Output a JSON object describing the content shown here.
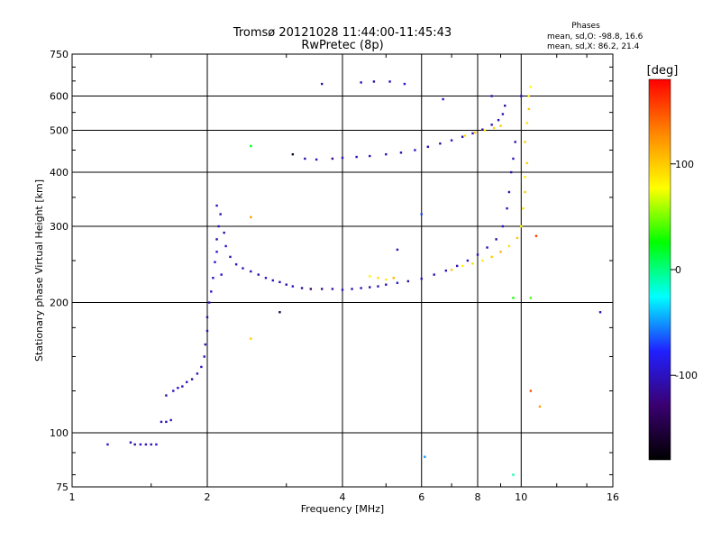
{
  "header": {
    "title": "Tromsø 20121028 11:44:00-11:45:43",
    "subtitle": "RwPretec (8p)",
    "phases_title": "Phases",
    "phases_o": "mean, sd,O: -98.8, 16.6",
    "phases_x": "mean, sd,X:  86.2, 21.4"
  },
  "colorbar": {
    "unit_label": "[deg]",
    "range": [
      -180,
      180
    ],
    "ticks": [
      {
        "value": 100,
        "label": "100"
      },
      {
        "value": 0,
        "label": "0"
      },
      {
        "value": -100,
        "label": "-100"
      }
    ],
    "colors": [
      "#000000",
      "#3a0070",
      "#2020ff",
      "#00ffff",
      "#00ff00",
      "#ffff00",
      "#ff8800",
      "#ff0000"
    ]
  },
  "chart_data": {
    "type": "scatter",
    "xlabel": "Frequency [MHz]",
    "ylabel": "Stationary phase Virtual Height [km]",
    "x_scale": "log",
    "y_scale": "log",
    "xlim": [
      1,
      16
    ],
    "ylim": [
      75,
      750
    ],
    "xticks": [
      {
        "value": 1,
        "label": "1"
      },
      {
        "value": 2,
        "label": "2"
      },
      {
        "value": 4,
        "label": "4"
      },
      {
        "value": 6,
        "label": "6"
      },
      {
        "value": 8,
        "label": "8"
      },
      {
        "value": 10,
        "label": "10"
      },
      {
        "value": 16,
        "label": "16"
      }
    ],
    "yticks": [
      {
        "value": 75,
        "label": "75"
      },
      {
        "value": 100,
        "label": "100"
      },
      {
        "value": 200,
        "label": "200"
      },
      {
        "value": 300,
        "label": "300"
      },
      {
        "value": 400,
        "label": "400"
      },
      {
        "value": 500,
        "label": "500"
      },
      {
        "value": 600,
        "label": "600"
      },
      {
        "value": 750,
        "label": "750"
      }
    ],
    "grid": true,
    "series": [
      {
        "points": [
          [
            1.2,
            94,
            -100
          ],
          [
            1.35,
            95,
            -105
          ],
          [
            1.38,
            94,
            -110
          ],
          [
            1.42,
            94,
            -100
          ],
          [
            1.46,
            94,
            -100
          ],
          [
            1.5,
            94,
            -105
          ],
          [
            1.54,
            94,
            -95
          ],
          [
            1.58,
            106,
            -100
          ],
          [
            1.62,
            106,
            -110
          ],
          [
            1.66,
            107,
            -100
          ],
          [
            1.62,
            122,
            -110
          ],
          [
            1.68,
            125,
            -100
          ],
          [
            1.72,
            127,
            -95
          ],
          [
            1.76,
            128,
            -105
          ],
          [
            1.8,
            131,
            -100
          ],
          [
            1.85,
            133,
            -110
          ],
          [
            1.9,
            137,
            -100
          ],
          [
            1.94,
            142,
            -100
          ],
          [
            1.97,
            150,
            -110
          ],
          [
            1.98,
            160,
            -100
          ],
          [
            2.0,
            172,
            -105
          ],
          [
            2.0,
            185,
            -110
          ],
          [
            2.02,
            200,
            -100
          ],
          [
            2.04,
            212,
            -100
          ],
          [
            2.06,
            228,
            -105
          ],
          [
            2.08,
            248,
            -100
          ],
          [
            2.1,
            262,
            -95
          ],
          [
            2.1,
            280,
            -110
          ],
          [
            2.12,
            300,
            -100
          ],
          [
            2.14,
            320,
            -105
          ],
          [
            2.1,
            335,
            -100
          ],
          [
            2.15,
            232,
            -100
          ],
          [
            2.18,
            290,
            -110
          ],
          [
            2.2,
            270,
            -100
          ],
          [
            2.25,
            255,
            -105
          ],
          [
            2.32,
            245,
            -100
          ],
          [
            2.4,
            240,
            -100
          ],
          [
            2.5,
            236,
            -105
          ],
          [
            2.6,
            232,
            -110
          ],
          [
            2.7,
            228,
            -100
          ],
          [
            2.8,
            225,
            -100
          ],
          [
            2.9,
            223,
            -105
          ],
          [
            3.0,
            220,
            -110
          ],
          [
            3.1,
            218,
            -100
          ],
          [
            3.25,
            216,
            -120
          ],
          [
            3.4,
            215,
            -130
          ],
          [
            3.6,
            215,
            -120
          ],
          [
            3.8,
            215,
            -110
          ],
          [
            4.0,
            214,
            -100
          ],
          [
            4.2,
            215,
            -105
          ],
          [
            4.4,
            216,
            -100
          ],
          [
            4.6,
            217,
            -110
          ],
          [
            4.8,
            218,
            -100
          ],
          [
            5.0,
            220,
            -105
          ],
          [
            5.3,
            222,
            -100
          ],
          [
            5.6,
            224,
            -110
          ],
          [
            6.0,
            227,
            -100
          ],
          [
            6.4,
            232,
            -105
          ],
          [
            6.8,
            237,
            -100
          ],
          [
            7.2,
            243,
            -110
          ],
          [
            7.6,
            250,
            -100
          ],
          [
            8.0,
            258,
            -105
          ],
          [
            8.4,
            268,
            -100
          ],
          [
            8.8,
            280,
            -110
          ],
          [
            9.1,
            300,
            -100
          ],
          [
            9.3,
            330,
            -105
          ],
          [
            9.4,
            360,
            -100
          ],
          [
            9.5,
            400,
            -110
          ],
          [
            9.6,
            430,
            -100
          ],
          [
            9.7,
            470,
            -105
          ],
          [
            4.6,
            230,
            80
          ],
          [
            4.8,
            228,
            90
          ],
          [
            5.0,
            226,
            85
          ],
          [
            5.2,
            228,
            110
          ],
          [
            7.0,
            238,
            100
          ],
          [
            7.4,
            243,
            80
          ],
          [
            7.8,
            246,
            90
          ],
          [
            8.2,
            250,
            85
          ],
          [
            8.6,
            255,
            100
          ],
          [
            9.0,
            262,
            110
          ],
          [
            9.4,
            270,
            90
          ],
          [
            9.8,
            282,
            100
          ],
          [
            10.0,
            300,
            80
          ],
          [
            10.1,
            330,
            90
          ],
          [
            10.2,
            360,
            100
          ],
          [
            10.2,
            390,
            85
          ],
          [
            10.3,
            420,
            95
          ],
          [
            10.2,
            470,
            100
          ],
          [
            10.3,
            520,
            90
          ],
          [
            10.4,
            560,
            100
          ],
          [
            10.4,
            600,
            85
          ],
          [
            10.5,
            630,
            80
          ],
          [
            3.3,
            430,
            -110
          ],
          [
            3.5,
            428,
            -100
          ],
          [
            3.8,
            430,
            -120
          ],
          [
            4.0,
            432,
            -100
          ],
          [
            4.3,
            434,
            -110
          ],
          [
            4.6,
            436,
            -100
          ],
          [
            5.0,
            440,
            -105
          ],
          [
            5.4,
            444,
            -110
          ],
          [
            5.8,
            450,
            -100
          ],
          [
            6.2,
            458,
            -105
          ],
          [
            6.6,
            466,
            -110
          ],
          [
            7.0,
            474,
            -100
          ],
          [
            7.4,
            483,
            -105
          ],
          [
            7.8,
            492,
            -100
          ],
          [
            8.2,
            502,
            -110
          ],
          [
            8.6,
            515,
            -100
          ],
          [
            8.9,
            528,
            -105
          ],
          [
            9.1,
            545,
            -100
          ],
          [
            9.2,
            570,
            -110
          ],
          [
            7.5,
            486,
            90
          ],
          [
            7.9,
            494,
            100
          ],
          [
            8.3,
            500,
            85
          ],
          [
            8.7,
            506,
            95
          ],
          [
            9.0,
            512,
            100
          ],
          [
            3.6,
            640,
            -110
          ],
          [
            4.4,
            645,
            -100
          ],
          [
            4.7,
            648,
            -110
          ],
          [
            5.1,
            648,
            -105
          ],
          [
            5.5,
            640,
            -100
          ],
          [
            6.7,
            590,
            -100
          ],
          [
            8.6,
            600,
            -110
          ],
          [
            10.0,
            600,
            -100
          ],
          [
            2.5,
            460,
            20
          ],
          [
            3.1,
            440,
            -160
          ],
          [
            2.5,
            315,
            120
          ],
          [
            2.9,
            190,
            -150
          ],
          [
            5.3,
            265,
            -100
          ],
          [
            6.0,
            320,
            -70
          ],
          [
            6.1,
            88,
            -50
          ],
          [
            9.6,
            80,
            -10
          ],
          [
            9.6,
            205,
            30
          ],
          [
            10.5,
            205,
            40
          ],
          [
            10.5,
            125,
            150
          ],
          [
            11.0,
            115,
            120
          ],
          [
            10.8,
            285,
            160
          ],
          [
            15.0,
            190,
            -100
          ],
          [
            2.5,
            165,
            100
          ]
        ]
      }
    ]
  }
}
